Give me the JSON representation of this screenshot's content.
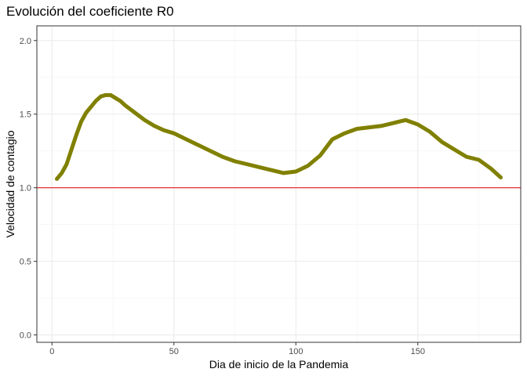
{
  "chart_data": {
    "type": "line",
    "title": "Evolución del coeficiente R0",
    "xlabel": "Dia de inicio de la Pandemia",
    "ylabel": "Velocidad de contagio",
    "xlim": [
      -6.2,
      192.2
    ],
    "ylim": [
      -0.05,
      2.1
    ],
    "x_ticks": [
      0,
      50,
      100,
      150
    ],
    "x_tick_labels": [
      "0",
      "50",
      "100",
      "150"
    ],
    "y_ticks": [
      0.0,
      0.5,
      1.0,
      1.5,
      2.0
    ],
    "y_tick_labels": [
      "0.0",
      "0.5",
      "1.0",
      "1.5",
      "2.0"
    ],
    "grid": true,
    "background": "#ffffff",
    "grid_major_color": "#ebebeb",
    "grid_minor_color": "#f2f2f2",
    "panel_border_color": "#333333",
    "series": [
      {
        "color": "#808000",
        "x": [
          2,
          4,
          6,
          8,
          10,
          12,
          14,
          16,
          18,
          20,
          22,
          24,
          26,
          28,
          30,
          34,
          38,
          42,
          46,
          50,
          55,
          60,
          65,
          70,
          75,
          80,
          85,
          90,
          95,
          100,
          105,
          110,
          115,
          120,
          125,
          130,
          135,
          140,
          145,
          150,
          155,
          160,
          165,
          170,
          175,
          180,
          184
        ],
        "y": [
          1.06,
          1.1,
          1.16,
          1.26,
          1.36,
          1.45,
          1.51,
          1.55,
          1.59,
          1.62,
          1.63,
          1.63,
          1.61,
          1.59,
          1.56,
          1.51,
          1.46,
          1.42,
          1.39,
          1.37,
          1.33,
          1.29,
          1.25,
          1.21,
          1.18,
          1.16,
          1.14,
          1.12,
          1.1,
          1.11,
          1.15,
          1.22,
          1.33,
          1.37,
          1.4,
          1.41,
          1.42,
          1.44,
          1.46,
          1.43,
          1.38,
          1.31,
          1.26,
          1.21,
          1.19,
          1.13,
          1.07
        ]
      }
    ],
    "reference_line": {
      "y": 1.0,
      "color": "#e41a1c"
    }
  }
}
